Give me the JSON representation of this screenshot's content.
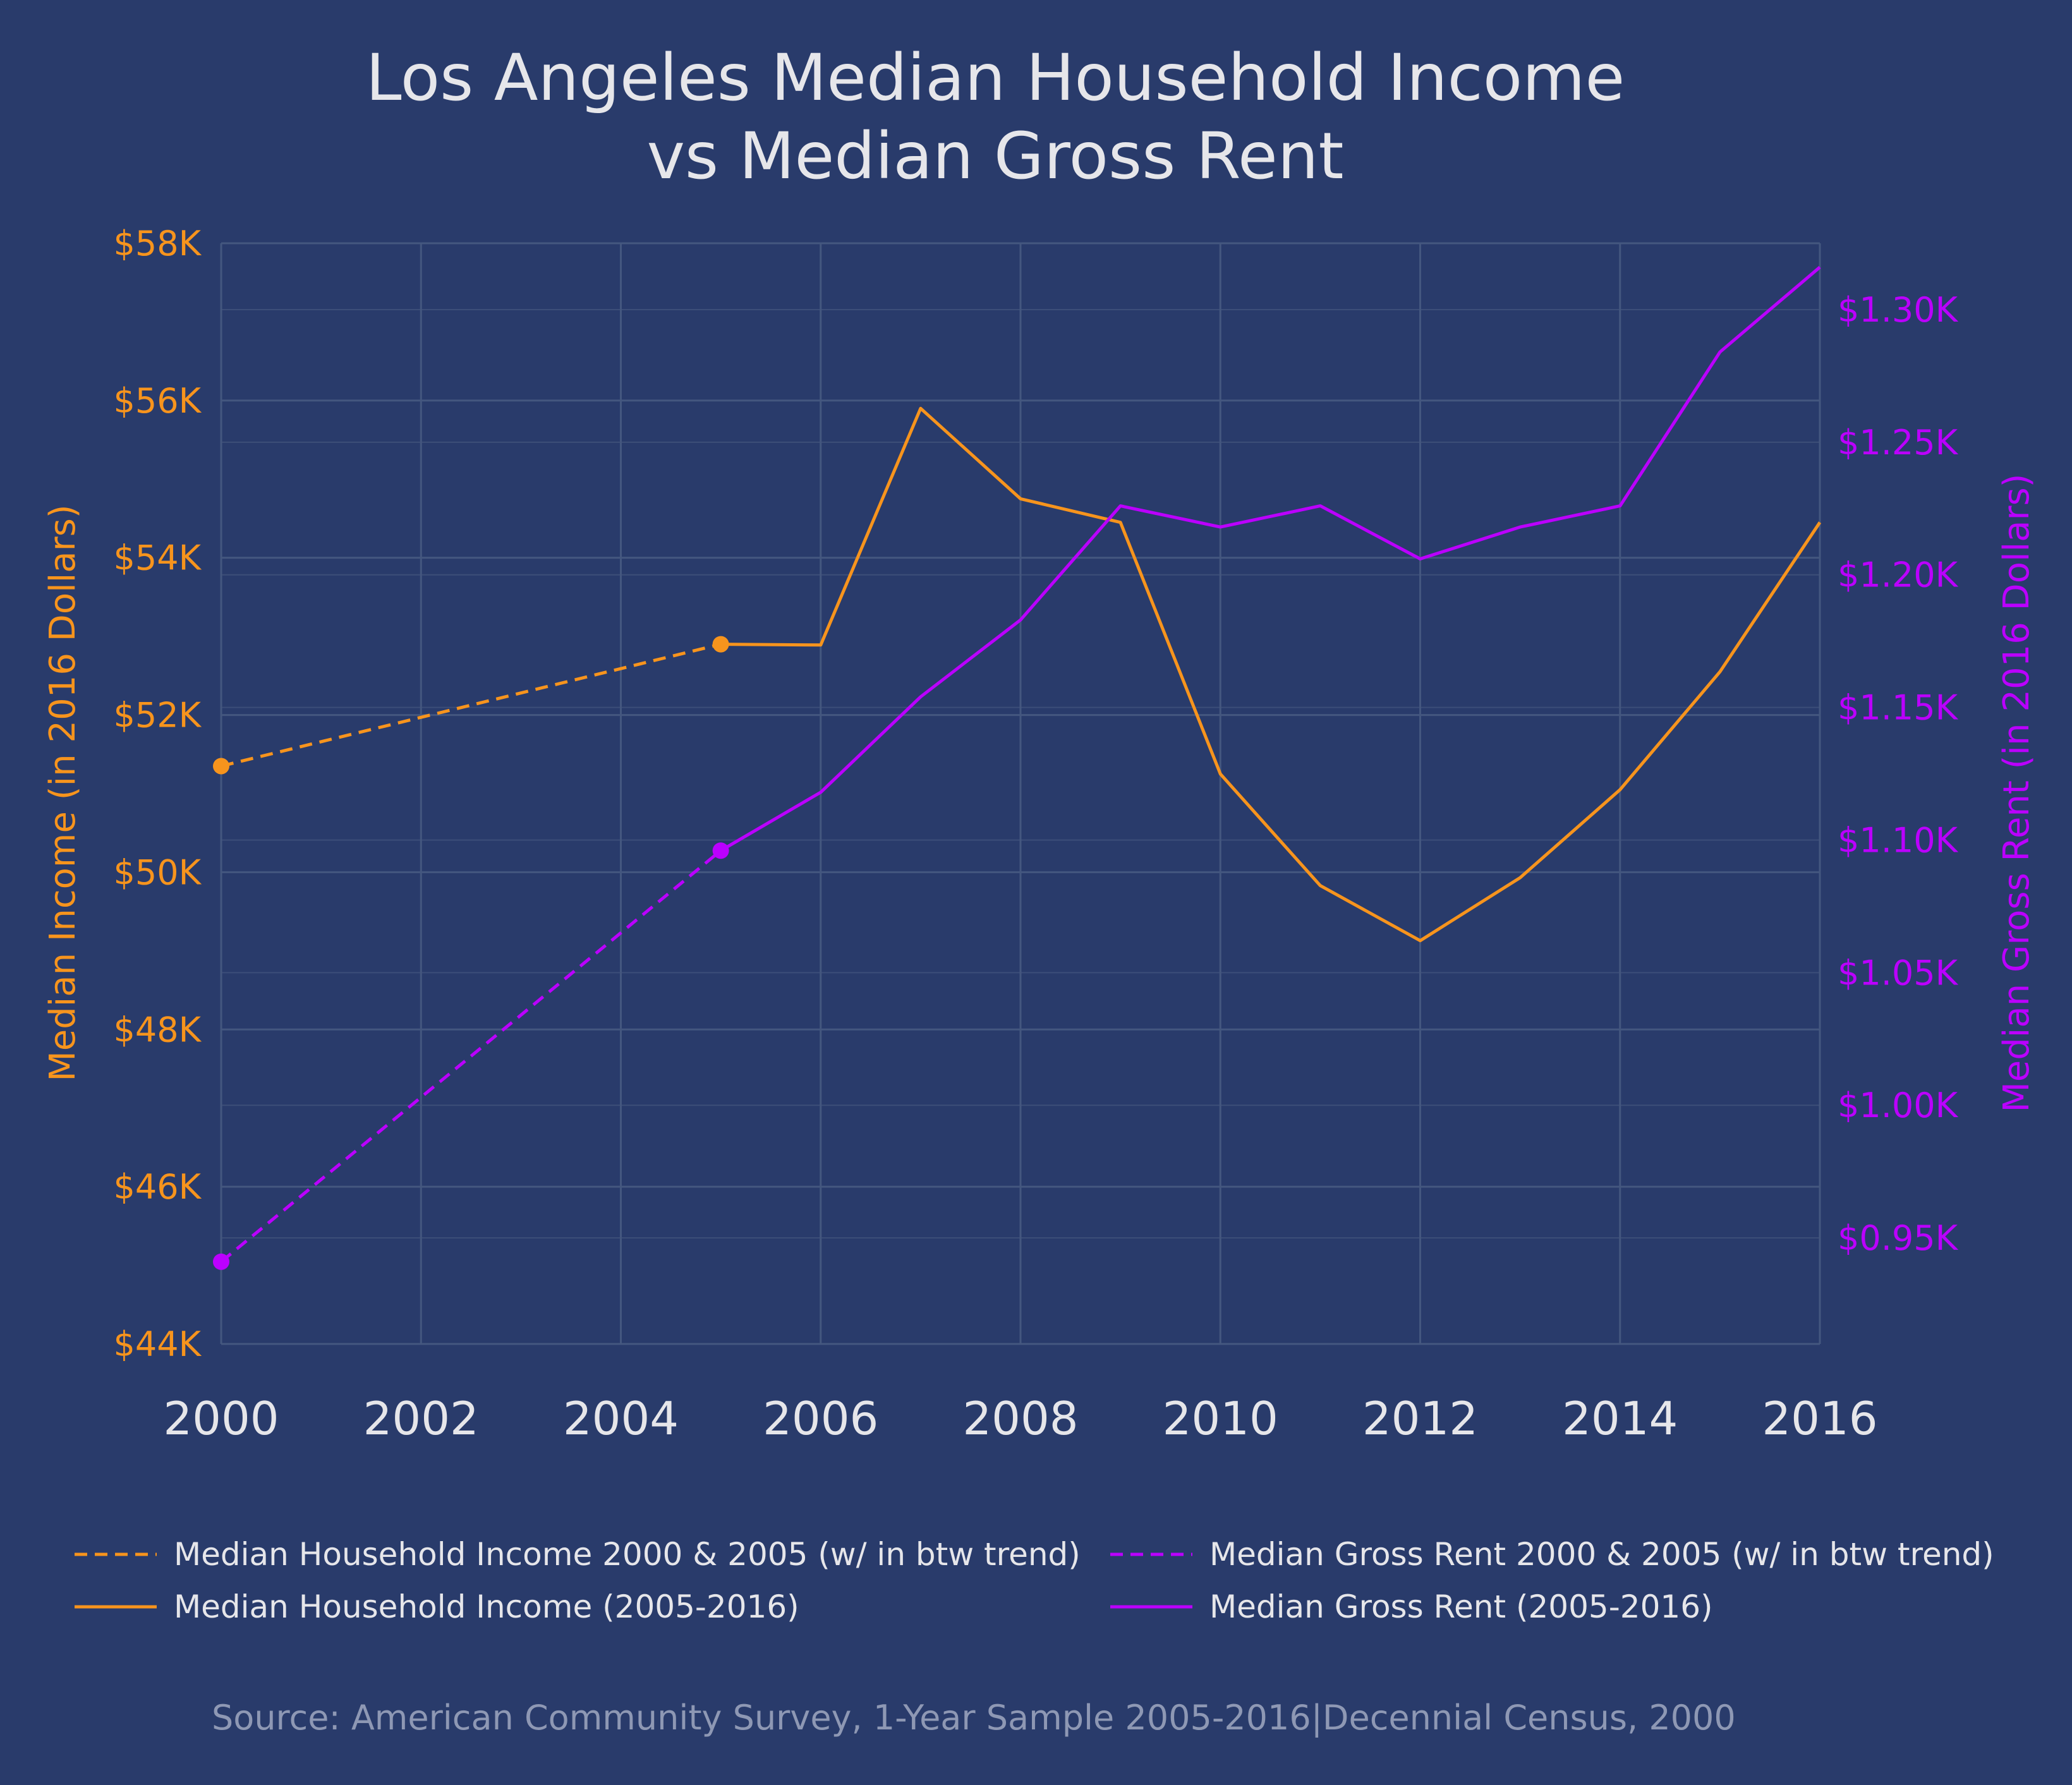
{
  "chart_data": {
    "type": "line",
    "title_lines": [
      "Los Angeles Median Household Income",
      "vs Median Gross Rent"
    ],
    "xlabel": "",
    "ylabel_left": "Median Income (in 2016 Dollars)",
    "ylabel_right": "Median Gross Rent (in 2016 Dollars)",
    "x_ticks": [
      2000,
      2002,
      2004,
      2006,
      2008,
      2010,
      2012,
      2014,
      2016
    ],
    "xlim": [
      2000,
      2016
    ],
    "ylim_left": [
      44000,
      58000
    ],
    "ylim_right": [
      0.91,
      1.325
    ],
    "y_ticks_left": [
      {
        "value": 44000,
        "label": "$44K"
      },
      {
        "value": 46000,
        "label": "$46K"
      },
      {
        "value": 48000,
        "label": "$48K"
      },
      {
        "value": 50000,
        "label": "$50K"
      },
      {
        "value": 52000,
        "label": "$52K"
      },
      {
        "value": 54000,
        "label": "$54K"
      },
      {
        "value": 56000,
        "label": "$56K"
      },
      {
        "value": 58000,
        "label": "$58K"
      }
    ],
    "y_ticks_right": [
      {
        "value": 0.95,
        "label": "$0.95K"
      },
      {
        "value": 1.0,
        "label": "$1.00K"
      },
      {
        "value": 1.05,
        "label": "$1.05K"
      },
      {
        "value": 1.1,
        "label": "$1.10K"
      },
      {
        "value": 1.15,
        "label": "$1.15K"
      },
      {
        "value": 1.2,
        "label": "$1.20K"
      },
      {
        "value": 1.25,
        "label": "$1.25K"
      },
      {
        "value": 1.3,
        "label": "$1.30K"
      }
    ],
    "grid": true,
    "legend_position": "bottom",
    "series": [
      {
        "name": "Median Household Income 2000 & 2005 (w/ in btw trend)",
        "axis": "left",
        "color": "#f7941d",
        "dashed": true,
        "markers": true,
        "x": [
          2000,
          2005
        ],
        "values": [
          51350,
          52900
        ]
      },
      {
        "name": "Median Household Income (2005-2016)",
        "axis": "left",
        "color": "#f7941d",
        "dashed": false,
        "markers": false,
        "x": [
          2005,
          2006,
          2007,
          2008,
          2009,
          2010,
          2011,
          2012,
          2013,
          2014,
          2015,
          2016
        ],
        "values": [
          52900,
          52890,
          55900,
          54750,
          54450,
          51250,
          49830,
          49130,
          49930,
          51050,
          52550,
          54450
        ]
      },
      {
        "name": "Median Gross Rent 2000 & 2005 (w/ in btw trend)",
        "axis": "right",
        "color": "#bb00ff",
        "dashed": true,
        "markers": true,
        "x": [
          2000,
          2005
        ],
        "values": [
          0.941,
          1.096
        ]
      },
      {
        "name": "Median Gross Rent (2005-2016)",
        "axis": "right",
        "color": "#bb00ff",
        "dashed": false,
        "markers": false,
        "x": [
          2005,
          2006,
          2007,
          2008,
          2009,
          2010,
          2011,
          2012,
          2013,
          2014,
          2015,
          2016
        ],
        "values": [
          1.096,
          1.118,
          1.154,
          1.183,
          1.226,
          1.218,
          1.226,
          1.206,
          1.218,
          1.226,
          1.284,
          1.316
        ]
      }
    ],
    "source": "Source: American Community Survey, 1-Year Sample 2005-2016|Decennial Census, 2000"
  },
  "colors": {
    "background": "#293b6b",
    "grid": "#44577f",
    "title": "#e6e6ea",
    "income": "#f7941d",
    "rent": "#bb00ff",
    "tick_x": "#e6e6ea",
    "legend_text": "#e6e6ea",
    "source_text": "#8e98b4"
  }
}
